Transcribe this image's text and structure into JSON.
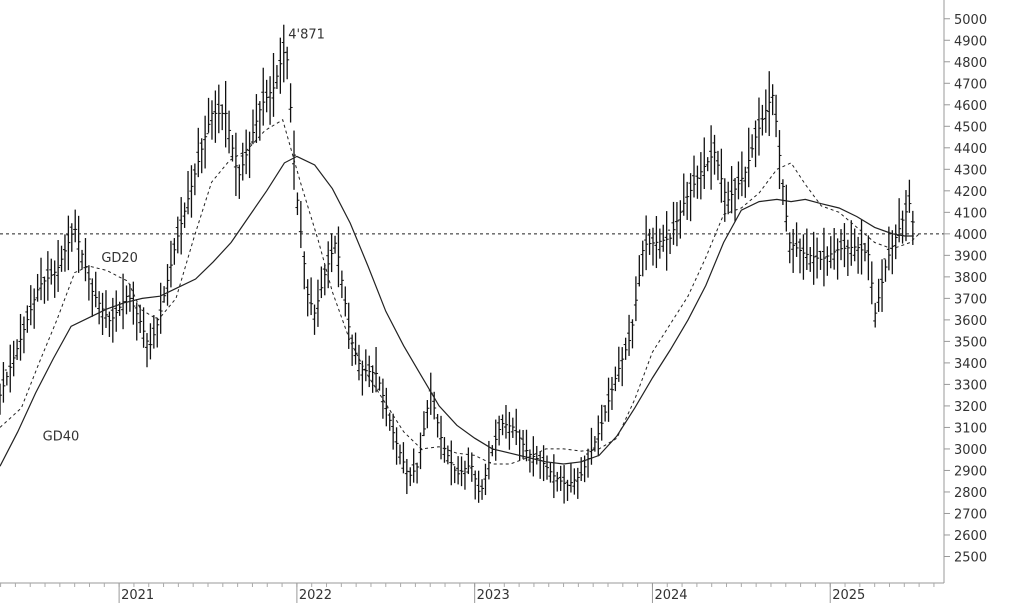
{
  "chart_data": {
    "type": "line",
    "title": "",
    "xlabel": "",
    "ylabel": "",
    "ylim": [
      2400,
      5050
    ],
    "y_ticks": [
      "5000",
      "4900",
      "4800",
      "4700",
      "4600",
      "4500",
      "4400",
      "4300",
      "4200",
      "4100",
      "4000",
      "3900",
      "3800",
      "3700",
      "3600",
      "3500",
      "3400",
      "3300",
      "3200",
      "3100",
      "3000",
      "2900",
      "2800",
      "2700",
      "2600",
      "2500"
    ],
    "x_ticks": [
      "2021",
      "2022",
      "2023",
      "2024",
      "2025"
    ],
    "x_tick_years": [
      2021,
      2022,
      2023,
      2024,
      2025
    ],
    "xlim": [
      2020.33,
      2025.64
    ],
    "grid": false,
    "reference_line": {
      "value": 4000,
      "style": "dashed"
    },
    "annotations": {
      "peak_label": "4'871",
      "peak_x": 2021.94,
      "peak_y": 4871,
      "gd20_label": "GD20",
      "gd20_x": 2020.9,
      "gd20_y": 3870,
      "gd40_label": "GD40",
      "gd40_x": 2020.57,
      "gd40_y": 3040
    },
    "series": [
      {
        "name": "Price",
        "style": "weekly-bars",
        "x": [
          2020.33,
          2020.45,
          2020.55,
          2020.65,
          2020.75,
          2020.85,
          2020.95,
          2021.05,
          2021.12,
          2021.17,
          2021.22,
          2021.32,
          2021.42,
          2021.52,
          2021.6,
          2021.67,
          2021.72,
          2021.8,
          2021.87,
          2021.92,
          2021.94,
          2022.0,
          2022.06,
          2022.1,
          2022.16,
          2022.22,
          2022.3,
          2022.36,
          2022.45,
          2022.55,
          2022.63,
          2022.68,
          2022.75,
          2022.82,
          2022.9,
          2022.98,
          2023.03,
          2023.1,
          2023.15,
          2023.22,
          2023.3,
          2023.38,
          2023.45,
          2023.52,
          2023.6,
          2023.7,
          2023.8,
          2023.88,
          2023.95,
          2024.02,
          2024.1,
          2024.18,
          2024.28,
          2024.35,
          2024.42,
          2024.52,
          2024.58,
          2024.65,
          2024.68,
          2024.72,
          2024.77,
          2024.85,
          2024.95,
          2025.05,
          2025.15,
          2025.22,
          2025.25,
          2025.32,
          2025.4,
          2025.45,
          2025.47
        ],
        "y": [
          3250,
          3520,
          3760,
          3830,
          4030,
          3730,
          3590,
          3720,
          3590,
          3470,
          3590,
          3960,
          4260,
          4560,
          4560,
          4260,
          4380,
          4600,
          4680,
          4830,
          4871,
          4180,
          3720,
          3630,
          3820,
          3970,
          3520,
          3370,
          3350,
          3050,
          2870,
          2920,
          3270,
          3020,
          2880,
          2930,
          2780,
          3000,
          3120,
          3100,
          2980,
          2940,
          2870,
          2830,
          2880,
          3080,
          3350,
          3530,
          3950,
          3960,
          3980,
          4150,
          4300,
          4380,
          4150,
          4280,
          4450,
          4600,
          4650,
          4320,
          3960,
          3910,
          3880,
          3930,
          3940,
          3900,
          3620,
          3880,
          4050,
          4150,
          4020
        ]
      },
      {
        "name": "GD20",
        "style": "dashed",
        "x": [
          2020.33,
          2020.45,
          2020.55,
          2020.65,
          2020.75,
          2020.83,
          2020.93,
          2021.0,
          2021.05,
          2021.12,
          2021.22,
          2021.32,
          2021.42,
          2021.52,
          2021.62,
          2021.72,
          2021.82,
          2021.92,
          2022.02,
          2022.12,
          2022.2,
          2022.3,
          2022.4,
          2022.5,
          2022.6,
          2022.7,
          2022.8,
          2022.9,
          2023.0,
          2023.1,
          2023.2,
          2023.3,
          2023.4,
          2023.5,
          2023.6,
          2023.7,
          2023.8,
          2023.9,
          2024.0,
          2024.1,
          2024.2,
          2024.3,
          2024.4,
          2024.5,
          2024.6,
          2024.7,
          2024.78,
          2024.86,
          2024.95,
          2025.05,
          2025.15,
          2025.25,
          2025.35,
          2025.45,
          2025.5
        ],
        "y": [
          3100,
          3190,
          3400,
          3600,
          3820,
          3850,
          3830,
          3800,
          3780,
          3650,
          3600,
          3700,
          3980,
          4240,
          4340,
          4390,
          4480,
          4530,
          4240,
          3970,
          3730,
          3500,
          3340,
          3210,
          3080,
          3000,
          3010,
          2980,
          2970,
          2930,
          2930,
          2960,
          3000,
          3000,
          2990,
          3000,
          3050,
          3230,
          3450,
          3580,
          3710,
          3890,
          4090,
          4120,
          4190,
          4300,
          4330,
          4230,
          4130,
          4100,
          4030,
          3960,
          3930,
          3960,
          4000
        ]
      },
      {
        "name": "GD40",
        "style": "solid",
        "x": [
          2020.33,
          2020.43,
          2020.53,
          2020.63,
          2020.73,
          2020.83,
          2020.93,
          2021.03,
          2021.13,
          2021.23,
          2021.33,
          2021.43,
          2021.53,
          2021.63,
          2021.73,
          2021.83,
          2021.93,
          2022.0,
          2022.1,
          2022.2,
          2022.3,
          2022.4,
          2022.5,
          2022.6,
          2022.7,
          2022.8,
          2022.9,
          2023.0,
          2023.1,
          2023.2,
          2023.3,
          2023.4,
          2023.5,
          2023.6,
          2023.7,
          2023.8,
          2023.9,
          2024.0,
          2024.1,
          2024.2,
          2024.3,
          2024.4,
          2024.5,
          2024.6,
          2024.7,
          2024.78,
          2024.86,
          2024.95,
          2025.05,
          2025.15,
          2025.25,
          2025.35,
          2025.42,
          2025.47
        ],
        "y": [
          2920,
          3080,
          3260,
          3420,
          3570,
          3610,
          3650,
          3680,
          3700,
          3710,
          3750,
          3790,
          3870,
          3960,
          4080,
          4200,
          4330,
          4360,
          4320,
          4210,
          4050,
          3850,
          3640,
          3480,
          3340,
          3200,
          3110,
          3050,
          3000,
          2980,
          2960,
          2940,
          2930,
          2940,
          2970,
          3060,
          3190,
          3330,
          3460,
          3600,
          3760,
          3960,
          4110,
          4150,
          4160,
          4150,
          4160,
          4140,
          4120,
          4080,
          4030,
          4000,
          3990,
          3990
        ]
      }
    ]
  }
}
